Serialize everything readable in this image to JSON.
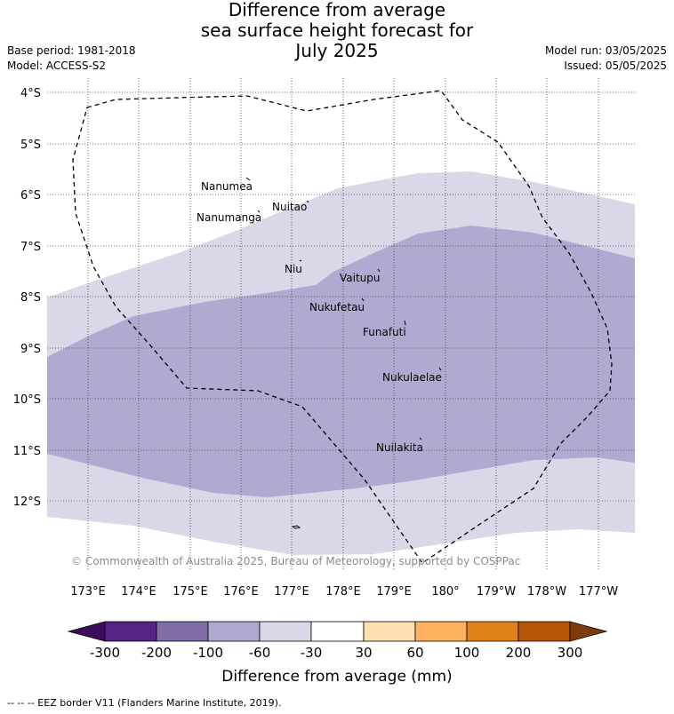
{
  "title": {
    "line1": "Difference from average",
    "line2": "sea surface height forecast for",
    "line3": "July 2025"
  },
  "meta": {
    "base_period": "Base period: 1981-2018",
    "model": "Model: ACCESS-S2",
    "model_run": "Model run: 03/05/2025",
    "issued": "Issued: 05/05/2025"
  },
  "map": {
    "lat_labels": [
      "4°S",
      "5°S",
      "6°S",
      "7°S",
      "8°S",
      "9°S",
      "10°S",
      "11°S",
      "12°S"
    ],
    "lon_labels": [
      "173°E",
      "174°E",
      "175°E",
      "176°E",
      "177°E",
      "178°E",
      "179°E",
      "180°",
      "179°W",
      "178°W",
      "177°W"
    ],
    "islands": [
      {
        "name": "Nanumea"
      },
      {
        "name": "Nuitao"
      },
      {
        "name": "Nanumanga"
      },
      {
        "name": "Niu"
      },
      {
        "name": "Vaitupu"
      },
      {
        "name": "Nukufetau"
      },
      {
        "name": "Funafuti"
      },
      {
        "name": "Nukulaelae"
      },
      {
        "name": "Nuilakita"
      }
    ],
    "copyright": "© Commonwealth of Australia 2025, Bureau of Meteorology, supported by COSPPac",
    "fill_colors": {
      "light": "#d8d8e8",
      "medium": "#b0aad0"
    }
  },
  "colorbar": {
    "title": "Difference from average (mm)",
    "ticks": [
      "-300",
      "-200",
      "-100",
      "-60",
      "-30",
      "30",
      "60",
      "100",
      "200",
      "300"
    ],
    "colors": [
      "#3a0c5c",
      "#562387",
      "#7f6ea8",
      "#b0aad0",
      "#d8d8e8",
      "#ffffff",
      "#ffdeb0",
      "#fdb25f",
      "#e0821a",
      "#b55506",
      "#7f3c0a"
    ]
  },
  "footnote": "--  --  -- EEZ border V11 (Flanders Marine Institute, 2019)."
}
